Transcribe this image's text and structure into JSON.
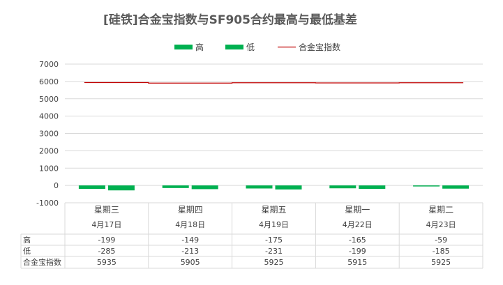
{
  "chart_data": {
    "type": "bar",
    "title": "[硅铁]合金宝指数与SF905合约最高与最低基差",
    "categories": [
      "星期三",
      "星期四",
      "星期五",
      "星期一",
      "星期二"
    ],
    "dates": [
      "4月17日",
      "4月18日",
      "4月19日",
      "4月22日",
      "4月23日"
    ],
    "series": [
      {
        "name": "高",
        "kind": "bar",
        "color": "#00b050",
        "values": [
          -199,
          -149,
          -175,
          -165,
          -59
        ]
      },
      {
        "name": "低",
        "kind": "bar",
        "color": "#00b050",
        "values": [
          -285,
          -213,
          -231,
          -199,
          -185
        ]
      },
      {
        "name": "合金宝指数",
        "kind": "line",
        "color": "#c00000",
        "values": [
          5935,
          5905,
          5925,
          5915,
          5925
        ]
      }
    ],
    "yticks": [
      "7000",
      "6000",
      "5000",
      "4000",
      "3000",
      "2000",
      "1000",
      "0",
      "-1000"
    ],
    "ylim": [
      -1000,
      7000
    ],
    "legend": "top",
    "grid": true,
    "data_table": true
  }
}
